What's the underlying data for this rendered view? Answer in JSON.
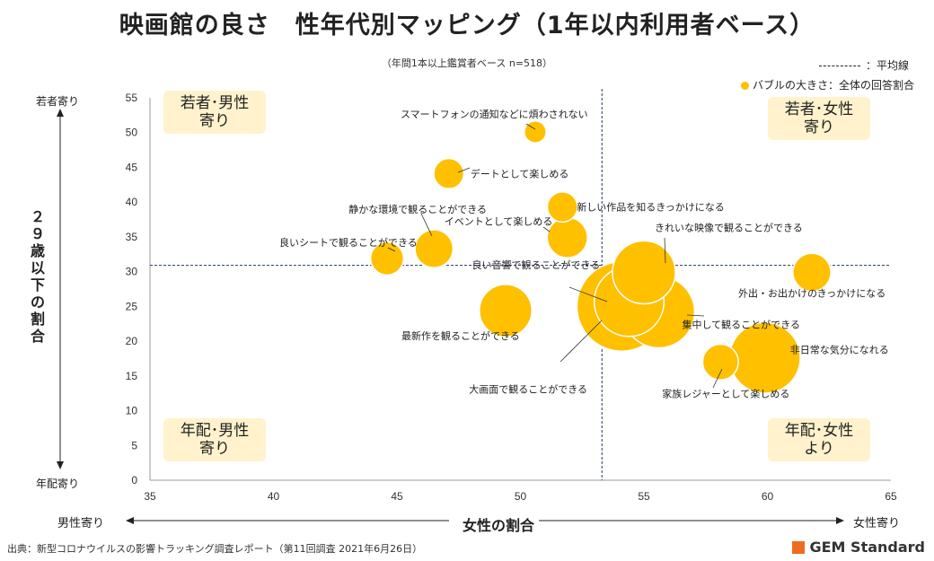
{
  "title": "映画館の良さ　性年代別マッピング（1年以内利用者ベース）",
  "subtitle": "（年間1本以上鑑賞者ベース n=518）",
  "legend": {
    "line_label": "：平均線",
    "bubble_label": "バブルの大きさ：全体の回答割合"
  },
  "quadrants": {
    "top_left": "若者･男性\n寄り",
    "top_right": "若者･女性\n寄り",
    "bottom_left": "年配･男性\n寄り",
    "bottom_right": "年配･女性\nより"
  },
  "y_axis": {
    "top_label": "若者寄り",
    "bottom_label": "年配寄り",
    "title": "２９歳以下の割合"
  },
  "x_axis": {
    "left_label": "男性寄り",
    "right_label": "女性寄り",
    "title": "女性の割合"
  },
  "source": "出典：新型コロナウイルスの影響トラッキング調査レポート（第11回調査 2021年6月26日）",
  "brand": "GEM Standard",
  "colors": {
    "bubble": "#FFC000",
    "quadrant_bg": "#FFF2CC",
    "avg_line": "#1F3864",
    "brand": "#F06A1F"
  },
  "chart_data": {
    "type": "scatter",
    "xlim": [
      35,
      65
    ],
    "ylim": [
      0,
      55
    ],
    "x_ticks": [
      35,
      40,
      45,
      50,
      55,
      60,
      65
    ],
    "y_ticks": [
      0,
      5,
      10,
      15,
      20,
      25,
      30,
      35,
      40,
      45,
      50,
      55
    ],
    "x_average": 53.3,
    "y_average": 30.9,
    "points": [
      {
        "label": "スマートフォンの通知などに煩わされない",
        "x": 50.6,
        "y": 50.1,
        "size": 1
      },
      {
        "label": "デートとして楽しめる",
        "x": 47.1,
        "y": 44.1,
        "size": 3
      },
      {
        "label": "新しい作品を知るきっかけになる",
        "x": 51.7,
        "y": 39.3,
        "size": 3
      },
      {
        "label": "静かな環境で観ることができる",
        "x": 46.5,
        "y": 33.3,
        "size": 6
      },
      {
        "label": "イベントとして楽しめる",
        "x": 51.9,
        "y": 34.9,
        "size": 7
      },
      {
        "label": "良いシートで観ることができる",
        "x": 44.6,
        "y": 31.9,
        "size": 4
      },
      {
        "label": "きれいな映像で観ることができる",
        "x": 55.0,
        "y": 29.9,
        "size": 22
      },
      {
        "label": "外出・お出かけのきっかけになる",
        "x": 61.8,
        "y": 29.9,
        "size": 6
      },
      {
        "label": "良い音響で観ることができる",
        "x": 54.4,
        "y": 25.7,
        "size": 28
      },
      {
        "label": "大画面で観ることができる",
        "x": 54.1,
        "y": 25.0,
        "size": 50
      },
      {
        "label": "集中して観ることができる",
        "x": 55.6,
        "y": 24.2,
        "size": 30
      },
      {
        "label": "最新作を観ることができる",
        "x": 49.4,
        "y": 24.4,
        "size": 14
      },
      {
        "label": "非日常な気分になれる",
        "x": 59.9,
        "y": 17.6,
        "size": 29
      },
      {
        "label": "家族レジャーとして楽しめる",
        "x": 58.1,
        "y": 17.0,
        "size": 5
      }
    ]
  }
}
